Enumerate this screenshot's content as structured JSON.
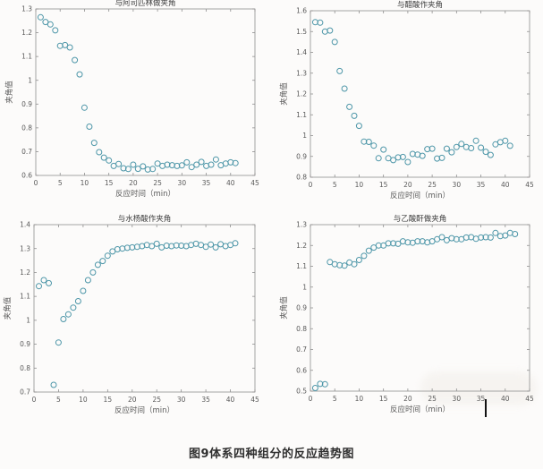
{
  "figure_caption": "图9体系四种组分的反应趋势图",
  "colors": {
    "marker": "#4d96a8",
    "axis": "#8f8f8f",
    "tick_text": "#5a5a5a",
    "title_text": "#3d3d3d",
    "caption_text": "#2f2f2f"
  },
  "chart_data": [
    {
      "type": "scatter",
      "title": "与阿司匹林做夹角",
      "xlabel": "反应时间（min）",
      "ylabel": "夹角值",
      "xlim": [
        0,
        45
      ],
      "ylim": [
        0.6,
        1.3
      ],
      "xticks": [
        0,
        5,
        10,
        15,
        20,
        25,
        30,
        35,
        40,
        45
      ],
      "yticks": [
        0.6,
        0.7,
        0.8,
        0.9,
        1,
        1.1,
        1.2,
        1.3
      ],
      "grid": false,
      "legend": null,
      "x": [
        1,
        2,
        3,
        4,
        5,
        6,
        7,
        8,
        9,
        10,
        11,
        12,
        13,
        14,
        15,
        16,
        17,
        18,
        19,
        20,
        21,
        22,
        23,
        24,
        25,
        26,
        27,
        28,
        29,
        30,
        31,
        32,
        33,
        34,
        35,
        36,
        37,
        38,
        39,
        40,
        41
      ],
      "y": [
        1.265,
        1.245,
        1.235,
        1.21,
        1.145,
        1.148,
        1.138,
        1.085,
        1.025,
        0.885,
        0.805,
        0.737,
        0.698,
        0.675,
        0.663,
        0.64,
        0.648,
        0.63,
        0.627,
        0.645,
        0.628,
        0.638,
        0.625,
        0.627,
        0.65,
        0.64,
        0.645,
        0.643,
        0.64,
        0.642,
        0.655,
        0.635,
        0.645,
        0.657,
        0.64,
        0.645,
        0.667,
        0.643,
        0.65,
        0.655,
        0.652
      ]
    },
    {
      "type": "scatter",
      "title": "与醋酸作夹角",
      "xlabel": "反应时间（min）",
      "ylabel": "夹角值",
      "xlim": [
        0,
        45
      ],
      "ylim": [
        0.8,
        1.6
      ],
      "xticks": [
        0,
        5,
        10,
        15,
        20,
        25,
        30,
        35,
        40,
        45
      ],
      "yticks": [
        0.8,
        0.9,
        1,
        1.1,
        1.2,
        1.3,
        1.4,
        1.5,
        1.6
      ],
      "grid": false,
      "legend": null,
      "x": [
        1,
        2,
        3,
        4,
        5,
        6,
        7,
        8,
        9,
        10,
        11,
        12,
        13,
        14,
        15,
        16,
        17,
        18,
        19,
        20,
        21,
        22,
        23,
        24,
        25,
        26,
        27,
        28,
        29,
        30,
        31,
        32,
        33,
        34,
        35,
        36,
        37,
        38,
        39,
        40,
        41
      ],
      "y": [
        1.545,
        1.543,
        1.5,
        1.505,
        1.45,
        1.31,
        1.226,
        1.138,
        1.095,
        1.047,
        0.971,
        0.97,
        0.952,
        0.891,
        0.933,
        0.891,
        0.882,
        0.895,
        0.897,
        0.873,
        0.912,
        0.909,
        0.903,
        0.935,
        0.937,
        0.89,
        0.893,
        0.937,
        0.92,
        0.945,
        0.96,
        0.945,
        0.94,
        0.975,
        0.942,
        0.922,
        0.907,
        0.958,
        0.968,
        0.975,
        0.951
      ]
    },
    {
      "type": "scatter",
      "title": "与水杨酸作夹角",
      "xlabel": "反应时间（min）",
      "ylabel": "夹角值",
      "xlim": [
        0,
        45
      ],
      "ylim": [
        0.7,
        1.4
      ],
      "xticks": [
        0,
        5,
        10,
        15,
        20,
        25,
        30,
        35,
        40,
        45
      ],
      "yticks": [
        0.7,
        0.8,
        0.9,
        1,
        1.1,
        1.2,
        1.3,
        1.4
      ],
      "grid": false,
      "legend": null,
      "x": [
        1,
        2,
        3,
        4,
        5,
        6,
        7,
        8,
        9,
        10,
        11,
        12,
        13,
        14,
        15,
        16,
        17,
        18,
        19,
        20,
        21,
        22,
        23,
        24,
        25,
        26,
        27,
        28,
        29,
        30,
        31,
        32,
        33,
        34,
        35,
        36,
        37,
        38,
        39,
        40,
        41
      ],
      "y": [
        1.143,
        1.168,
        1.155,
        0.73,
        0.907,
        1.005,
        1.025,
        1.053,
        1.08,
        1.123,
        1.168,
        1.2,
        1.232,
        1.248,
        1.27,
        1.288,
        1.297,
        1.3,
        1.303,
        1.305,
        1.307,
        1.31,
        1.315,
        1.31,
        1.32,
        1.305,
        1.312,
        1.31,
        1.313,
        1.312,
        1.31,
        1.315,
        1.32,
        1.315,
        1.307,
        1.317,
        1.305,
        1.318,
        1.31,
        1.315,
        1.322
      ]
    },
    {
      "type": "scatter",
      "title": "与乙酸酐做夹角",
      "xlabel": "反应时间（min）",
      "ylabel": "夹角值",
      "xlim": [
        0,
        45
      ],
      "ylim": [
        0.5,
        1.3
      ],
      "xticks": [
        0,
        5,
        10,
        15,
        20,
        25,
        30,
        35,
        40,
        45
      ],
      "yticks": [
        0.5,
        0.6,
        0.7,
        0.8,
        0.9,
        1,
        1.1,
        1.2,
        1.3
      ],
      "grid": false,
      "legend": null,
      "x": [
        1,
        2,
        3,
        4,
        5,
        6,
        7,
        8,
        9,
        10,
        11,
        12,
        13,
        14,
        15,
        16,
        17,
        18,
        19,
        20,
        21,
        22,
        23,
        24,
        25,
        26,
        27,
        28,
        29,
        30,
        31,
        32,
        33,
        34,
        35,
        36,
        37,
        38,
        39,
        40,
        41,
        42
      ],
      "y": [
        0.515,
        0.535,
        0.533,
        1.12,
        1.11,
        1.105,
        1.103,
        1.118,
        1.11,
        1.13,
        1.15,
        1.175,
        1.19,
        1.2,
        1.2,
        1.21,
        1.21,
        1.208,
        1.22,
        1.215,
        1.213,
        1.22,
        1.22,
        1.215,
        1.22,
        1.23,
        1.24,
        1.225,
        1.235,
        1.23,
        1.23,
        1.238,
        1.24,
        1.232,
        1.238,
        1.24,
        1.238,
        1.26,
        1.245,
        1.248,
        1.26,
        1.255
      ]
    }
  ]
}
